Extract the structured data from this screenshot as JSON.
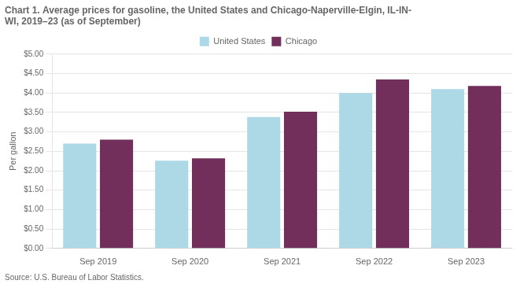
{
  "chart_data": {
    "type": "bar",
    "title": [
      "Chart 1. Average prices for gasoline, the United States and Chicago-Naperville-Elgin, IL-IN-",
      "WI, 2019–23 (as of September)"
    ],
    "y_label": "Per gallon",
    "source": "Source: U.S. Bureau of Labor Statistics.",
    "categories": [
      "Sep 2019",
      "Sep 2020",
      "Sep 2021",
      "Sep 2022",
      "Sep 2023"
    ],
    "series": [
      {
        "name": "United States",
        "color": "#ADD8E6",
        "values": [
          2.7,
          2.26,
          3.38,
          4.0,
          4.1
        ]
      },
      {
        "name": "Chicago",
        "color": "#722F5B",
        "values": [
          2.8,
          2.32,
          3.52,
          4.35,
          4.18
        ]
      }
    ],
    "ylim": [
      0,
      5.0
    ],
    "yticks": [
      {
        "value": 0.0,
        "label": "$0.00"
      },
      {
        "value": 0.5,
        "label": "$0.50"
      },
      {
        "value": 1.0,
        "label": "$1.00"
      },
      {
        "value": 1.5,
        "label": "$1.50"
      },
      {
        "value": 2.0,
        "label": "$2.00"
      },
      {
        "value": 2.5,
        "label": "$2.50"
      },
      {
        "value": 3.0,
        "label": "$3.00"
      },
      {
        "value": 3.5,
        "label": "$3.50"
      },
      {
        "value": 4.0,
        "label": "$4.00"
      },
      {
        "value": 4.5,
        "label": "$4.50"
      },
      {
        "value": 5.0,
        "label": "$5.00"
      }
    ],
    "grid": true,
    "legend": "top"
  }
}
